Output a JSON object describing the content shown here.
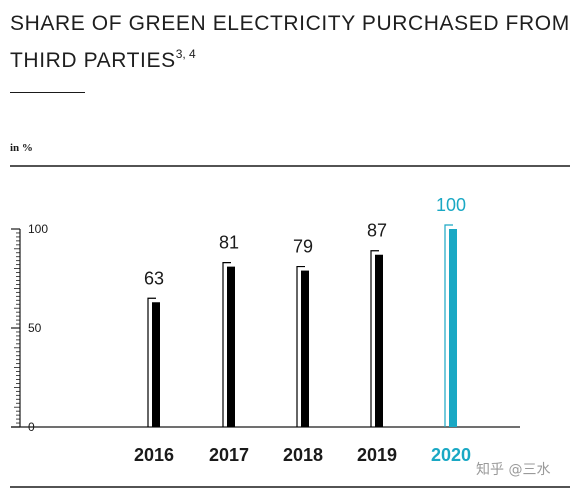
{
  "header": {
    "title_line1": "SHARE OF GREEN ELECTRICITY PURCHASED FROM",
    "title_line2": "THIRD PARTIES",
    "title_footnote": "3, 4"
  },
  "unit_label": "in %",
  "watermark": "知乎 @三水",
  "colors": {
    "bar": "#000000",
    "highlight": "#1aa8c4",
    "text": "#1a1a1a"
  },
  "chart_data": {
    "type": "bar",
    "categories": [
      "2016",
      "2017",
      "2018",
      "2019",
      "2020"
    ],
    "values": [
      63,
      81,
      79,
      87,
      100
    ],
    "value_labels": [
      "63",
      "81",
      "79",
      "87",
      "100"
    ],
    "highlight_category": "2020",
    "ylim": [
      0,
      100
    ],
    "y_ticks": [
      0,
      50,
      100
    ],
    "y_tick_labels": [
      "0",
      "50",
      "100"
    ],
    "ylabel": "in %",
    "grid": false,
    "legend": "none"
  }
}
